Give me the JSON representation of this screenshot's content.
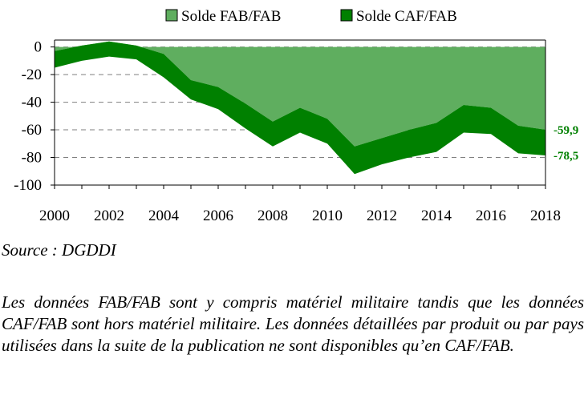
{
  "chart_data": {
    "type": "area",
    "x": [
      2000,
      2001,
      2002,
      2003,
      2004,
      2005,
      2006,
      2007,
      2008,
      2009,
      2010,
      2011,
      2012,
      2013,
      2014,
      2015,
      2016,
      2017,
      2018
    ],
    "series": [
      {
        "name": "Solde FAB/FAB",
        "color": "#5fae5f",
        "values": [
          -3,
          1,
          4,
          1,
          -5,
          -24,
          -29,
          -41,
          -54,
          -44,
          -52,
          -72,
          -66,
          -60,
          -55,
          -42,
          -44,
          -57,
          -59.9
        ]
      },
      {
        "name": "Solde CAF/FAB",
        "color": "#008000",
        "values": [
          -15,
          -10,
          -7,
          -9,
          -22,
          -38,
          -45,
          -59,
          -72,
          -62,
          -70,
          -92,
          -85,
          -80,
          -76,
          -62,
          -63,
          -77,
          -78.5
        ]
      }
    ],
    "yticks": [
      0,
      -20,
      -40,
      -60,
      -80,
      -100
    ],
    "xticks": [
      2000,
      2002,
      2004,
      2006,
      2008,
      2010,
      2012,
      2014,
      2016,
      2018
    ],
    "ylim": [
      -100,
      5
    ],
    "xlim": [
      2000,
      2018
    ],
    "end_labels": [
      "-59,9",
      "-78,5"
    ],
    "legend": [
      "Solde FAB/FAB",
      "Solde CAF/FAB"
    ],
    "legend_position": "top-center",
    "grid": "horizontal dashed"
  },
  "source": "Source : DGDDI",
  "note": "Les données FAB/FAB sont y compris matériel militaire tandis que les données CAF/FAB sont hors matériel militaire. Les données détaillées par produit ou par pays utilisées dans la suite de la publication ne sont disponibles qu’en CAF/FAB."
}
